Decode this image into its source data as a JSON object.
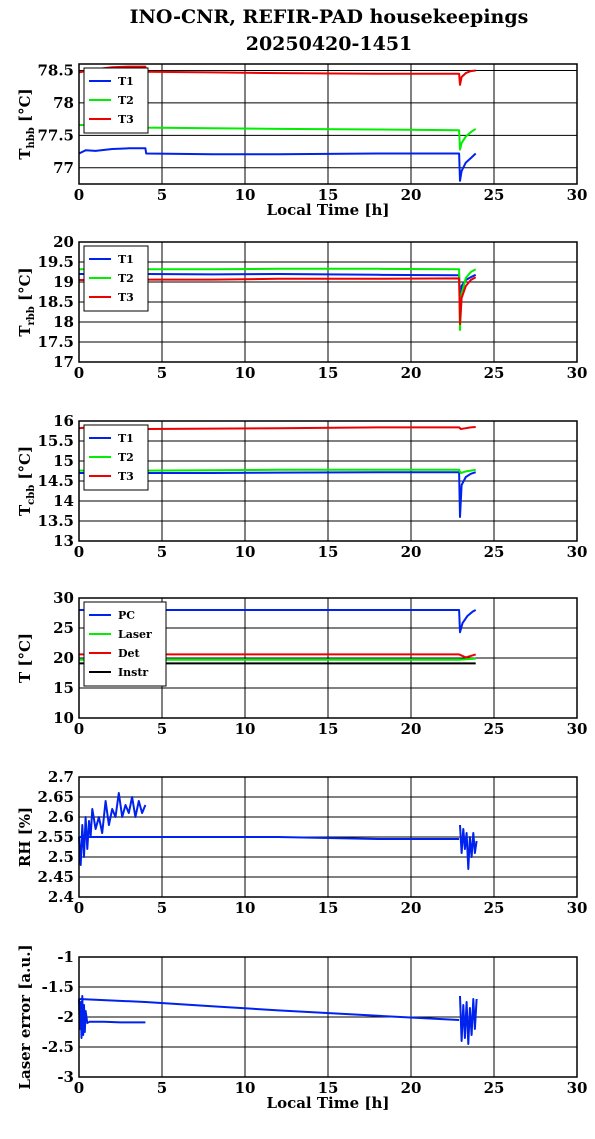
{
  "title_line1": "INO-CNR, REFIR-PAD housekeepings",
  "title_line2": "20250420-1451",
  "colors": {
    "blue": "#0022ee",
    "green": "#00ee00",
    "red": "#ee0000",
    "black": "#000000"
  },
  "chart_data": [
    {
      "type": "line",
      "ylabel_main": "T",
      "ylabel_sub": "hbb",
      "ylabel_unit": " [°C]",
      "xlabel": "Local Time [h]",
      "xlim": [
        0,
        30
      ],
      "ylim": [
        76.75,
        78.6
      ],
      "xticks": [
        "0",
        "5",
        "10",
        "15",
        "20",
        "25",
        "30"
      ],
      "yticks": [
        {
          "v": 77,
          "t": "77"
        },
        {
          "v": 77.5,
          "t": "77.5"
        },
        {
          "v": 78,
          "t": "78"
        },
        {
          "v": 78.5,
          "t": "78.5"
        }
      ],
      "grid": true,
      "legend": "top-left",
      "series": [
        {
          "name": "T1",
          "color": "blue",
          "x": [
            0,
            0.4,
            1,
            2,
            3,
            4,
            4.05,
            8,
            12,
            18,
            22.9,
            22.95,
            23.05,
            23.3,
            23.6,
            23.9
          ],
          "y": [
            77.22,
            77.27,
            77.26,
            77.29,
            77.3,
            77.3,
            77.22,
            77.21,
            77.21,
            77.22,
            77.22,
            76.8,
            76.95,
            77.08,
            77.15,
            77.22
          ]
        },
        {
          "name": "T2",
          "color": "green",
          "x": [
            0,
            1,
            2,
            3,
            4,
            4.05,
            8,
            12,
            18,
            22.9,
            22.95,
            23.05,
            23.3,
            23.6,
            23.9
          ],
          "y": [
            77.66,
            77.66,
            77.67,
            77.66,
            77.66,
            77.62,
            77.61,
            77.6,
            77.59,
            77.58,
            77.28,
            77.38,
            77.48,
            77.55,
            77.6
          ]
        },
        {
          "name": "T3",
          "color": "red",
          "x": [
            0,
            1,
            2,
            3,
            4,
            4.05,
            8,
            12,
            18,
            22.9,
            22.95,
            23.05,
            23.3,
            23.6,
            23.9
          ],
          "y": [
            78.47,
            78.52,
            78.55,
            78.56,
            78.56,
            78.48,
            78.47,
            78.46,
            78.45,
            78.45,
            78.28,
            78.4,
            78.46,
            78.49,
            78.5
          ]
        }
      ]
    },
    {
      "type": "line",
      "ylabel_main": "T",
      "ylabel_sub": "rbb",
      "ylabel_unit": " [°C]",
      "xlabel": "",
      "xlim": [
        0,
        30
      ],
      "ylim": [
        17,
        20
      ],
      "xticks": [
        "0",
        "5",
        "10",
        "15",
        "20",
        "25",
        "30"
      ],
      "yticks": [
        {
          "v": 17,
          "t": "17"
        },
        {
          "v": 17.5,
          "t": "17.5"
        },
        {
          "v": 18,
          "t": "18"
        },
        {
          "v": 18.5,
          "t": "18.5"
        },
        {
          "v": 19,
          "t": "19"
        },
        {
          "v": 19.5,
          "t": "19.5"
        },
        {
          "v": 20,
          "t": "20"
        }
      ],
      "grid": true,
      "legend": "top-left",
      "series": [
        {
          "name": "T1",
          "color": "blue",
          "x": [
            0,
            4,
            8,
            12,
            18,
            22.9,
            22.95,
            23.05,
            23.3,
            23.6,
            23.9
          ],
          "y": [
            19.2,
            19.2,
            19.19,
            19.2,
            19.18,
            19.17,
            18.5,
            18.9,
            19.05,
            19.12,
            19.18
          ]
        },
        {
          "name": "T2",
          "color": "green",
          "x": [
            0,
            4,
            8,
            12,
            18,
            22.9,
            22.95,
            23.05,
            23.3,
            23.6,
            23.9
          ],
          "y": [
            19.32,
            19.32,
            19.32,
            19.33,
            19.33,
            19.32,
            17.8,
            18.7,
            19.1,
            19.25,
            19.32
          ]
        },
        {
          "name": "T3",
          "color": "red",
          "x": [
            0,
            4,
            8,
            12,
            18,
            22.9,
            22.95,
            23.05,
            23.3,
            23.6,
            23.9
          ],
          "y": [
            19.05,
            19.06,
            19.06,
            19.08,
            19.08,
            19.09,
            17.95,
            18.6,
            18.9,
            19.05,
            19.12
          ]
        }
      ]
    },
    {
      "type": "line",
      "ylabel_main": "T",
      "ylabel_sub": "cbb",
      "ylabel_unit": " [°C]",
      "xlabel": "",
      "xlim": [
        0,
        30
      ],
      "ylim": [
        13,
        16
      ],
      "xticks": [
        "0",
        "5",
        "10",
        "15",
        "20",
        "25",
        "30"
      ],
      "yticks": [
        {
          "v": 13,
          "t": "13"
        },
        {
          "v": 13.5,
          "t": "13.5"
        },
        {
          "v": 14,
          "t": "14"
        },
        {
          "v": 14.5,
          "t": "14.5"
        },
        {
          "v": 15,
          "t": "15"
        },
        {
          "v": 15.5,
          "t": "15.5"
        },
        {
          "v": 16,
          "t": "16"
        }
      ],
      "grid": true,
      "legend": "top-left",
      "series": [
        {
          "name": "T1",
          "color": "blue",
          "x": [
            0,
            4,
            8,
            12,
            18,
            22.9,
            22.95,
            23.05,
            23.3,
            23.6,
            23.9
          ],
          "y": [
            14.7,
            14.7,
            14.7,
            14.71,
            14.72,
            14.72,
            13.6,
            14.4,
            14.6,
            14.68,
            14.72
          ]
        },
        {
          "name": "T2",
          "color": "green",
          "x": [
            0,
            4,
            8,
            12,
            18,
            22.9,
            23.0,
            23.3,
            23.6,
            23.9
          ],
          "y": [
            14.76,
            14.76,
            14.77,
            14.78,
            14.78,
            14.78,
            14.7,
            14.74,
            14.76,
            14.78
          ]
        },
        {
          "name": "T3",
          "color": "red",
          "x": [
            0,
            1,
            2,
            3,
            4,
            4.05,
            8,
            12,
            18,
            22.9,
            23.0,
            23.3,
            23.6,
            23.9
          ],
          "y": [
            15.82,
            15.86,
            15.88,
            15.88,
            15.87,
            15.8,
            15.81,
            15.82,
            15.84,
            15.84,
            15.8,
            15.82,
            15.84,
            15.85
          ]
        }
      ]
    },
    {
      "type": "line",
      "ylabel_main": "T [°C]",
      "ylabel_sub": "",
      "ylabel_unit": "",
      "xlabel": "",
      "xlim": [
        0,
        30
      ],
      "ylim": [
        10,
        30
      ],
      "xticks": [
        "0",
        "5",
        "10",
        "15",
        "20",
        "25",
        "30"
      ],
      "yticks": [
        {
          "v": 10,
          "t": "10"
        },
        {
          "v": 15,
          "t": "15"
        },
        {
          "v": 20,
          "t": "20"
        },
        {
          "v": 25,
          "t": "25"
        },
        {
          "v": 30,
          "t": "30"
        }
      ],
      "grid": true,
      "legend": "top-left",
      "series": [
        {
          "name": "PC",
          "color": "blue",
          "x": [
            0,
            4,
            8,
            12,
            18,
            22.9,
            22.95,
            23.1,
            23.4,
            23.7,
            23.9
          ],
          "y": [
            28,
            28,
            28,
            28,
            28,
            28,
            24.3,
            25.8,
            27,
            27.7,
            28
          ]
        },
        {
          "name": "Laser",
          "color": "green",
          "x": [
            0,
            4,
            8,
            12,
            18,
            22.9,
            23.3,
            23.9
          ],
          "y": [
            19.7,
            19.7,
            19.7,
            19.7,
            19.7,
            19.7,
            19.8,
            19.9
          ]
        },
        {
          "name": "Det",
          "color": "red",
          "x": [
            0,
            4,
            8,
            12,
            18,
            22.9,
            23.3,
            23.9
          ],
          "y": [
            20.6,
            20.6,
            20.6,
            20.6,
            20.6,
            20.6,
            20.1,
            20.6
          ]
        },
        {
          "name": "Instr",
          "color": "black",
          "x": [
            0,
            4,
            8,
            12,
            18,
            22.9,
            23.9
          ],
          "y": [
            19.1,
            19.1,
            19.1,
            19.1,
            19.1,
            19.1,
            19.1
          ]
        }
      ]
    },
    {
      "type": "line",
      "ylabel_main": "RH [%]",
      "ylabel_sub": "",
      "ylabel_unit": "",
      "xlabel": "",
      "xlim": [
        0,
        30
      ],
      "ylim": [
        2.4,
        2.7
      ],
      "xticks": [
        "0",
        "5",
        "10",
        "15",
        "20",
        "25",
        "30"
      ],
      "yticks": [
        {
          "v": 2.4,
          "t": "2.4"
        },
        {
          "v": 2.45,
          "t": "2.45"
        },
        {
          "v": 2.5,
          "t": "2.5"
        },
        {
          "v": 2.55,
          "t": "2.55"
        },
        {
          "v": 2.6,
          "t": "2.6"
        },
        {
          "v": 2.65,
          "t": "2.65"
        },
        {
          "v": 2.7,
          "t": "2.7"
        }
      ],
      "grid": true,
      "legend": "none",
      "series": [
        {
          "name": "",
          "color": "blue",
          "x": [
            0,
            0.1,
            0.2,
            0.3,
            0.4,
            0.5,
            0.6,
            0.7,
            0.8,
            1.0,
            1.2,
            1.4,
            1.6,
            1.8,
            2.0,
            2.2,
            2.4,
            2.6,
            2.8,
            3.0,
            3.2,
            3.4,
            3.6,
            3.8,
            4.0
          ],
          "y": [
            2.55,
            2.48,
            2.58,
            2.5,
            2.6,
            2.52,
            2.59,
            2.55,
            2.62,
            2.57,
            2.6,
            2.56,
            2.64,
            2.58,
            2.62,
            2.6,
            2.66,
            2.6,
            2.63,
            2.61,
            2.65,
            2.6,
            2.64,
            2.61,
            2.63
          ]
        },
        {
          "name": "",
          "color": "blue",
          "x": [
            0,
            4,
            8,
            12,
            18,
            22.9
          ],
          "y": [
            2.55,
            2.55,
            2.55,
            2.55,
            2.545,
            2.545
          ]
        },
        {
          "name": "",
          "color": "blue",
          "x": [
            22.95,
            23.05,
            23.15,
            23.25,
            23.35,
            23.45,
            23.55,
            23.65,
            23.75,
            23.85,
            23.95
          ],
          "y": [
            2.58,
            2.51,
            2.57,
            2.52,
            2.56,
            2.47,
            2.55,
            2.5,
            2.56,
            2.51,
            2.54
          ]
        }
      ]
    },
    {
      "type": "line",
      "ylabel_main": "Laser error [a.u.]",
      "ylabel_sub": "",
      "ylabel_unit": "",
      "xlabel": "Local Time [h]",
      "xlim": [
        0,
        30
      ],
      "ylim": [
        -3,
        -1
      ],
      "xticks": [
        "0",
        "5",
        "10",
        "15",
        "20",
        "25",
        "30"
      ],
      "yticks": [
        {
          "v": -3,
          "t": "-3"
        },
        {
          "v": -2.5,
          "t": "-2.5"
        },
        {
          "v": -2,
          "t": "-2"
        },
        {
          "v": -1.5,
          "t": "-1.5"
        },
        {
          "v": -1,
          "t": "-1"
        }
      ],
      "grid": true,
      "legend": "none",
      "series": [
        {
          "name": "",
          "color": "blue",
          "x": [
            0,
            0.05,
            0.1,
            0.15,
            0.2,
            0.25,
            0.3,
            0.35,
            0.4,
            0.5,
            0.6
          ],
          "y": [
            -1.7,
            -2.2,
            -1.75,
            -2.35,
            -1.65,
            -2.3,
            -1.8,
            -2.25,
            -1.9,
            -2.1,
            -2.08
          ]
        },
        {
          "name": "",
          "color": "blue",
          "x": [
            0.6,
            1.5,
            2.5,
            3.5,
            4.0
          ],
          "y": [
            -2.08,
            -2.08,
            -2.09,
            -2.09,
            -2.09
          ]
        },
        {
          "name": "",
          "color": "blue",
          "x": [
            0,
            4,
            8,
            12,
            18,
            22.9
          ],
          "y": [
            -1.7,
            -1.75,
            -1.82,
            -1.89,
            -1.98,
            -2.05
          ]
        },
        {
          "name": "",
          "color": "blue",
          "x": [
            22.95,
            23.05,
            23.15,
            23.25,
            23.35,
            23.45,
            23.55,
            23.65,
            23.75,
            23.85,
            23.95
          ],
          "y": [
            -1.65,
            -2.4,
            -1.8,
            -2.35,
            -1.75,
            -2.45,
            -1.85,
            -2.3,
            -1.7,
            -2.2,
            -1.7
          ]
        }
      ]
    }
  ]
}
